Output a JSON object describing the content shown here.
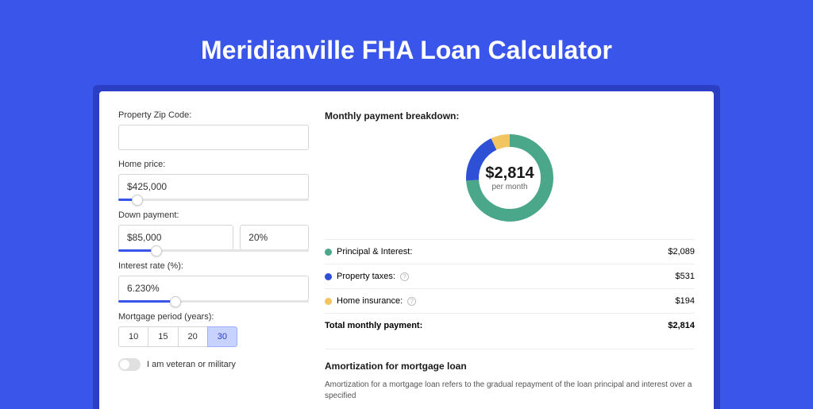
{
  "page": {
    "background_color": "#3955ea",
    "shadow_color": "#2a3fc4",
    "title": "Meridianville FHA Loan Calculator"
  },
  "form": {
    "zip": {
      "label": "Property Zip Code:",
      "value": ""
    },
    "home_price": {
      "label": "Home price:",
      "value": "$425,000",
      "slider_pct": 10
    },
    "down_payment": {
      "label": "Down payment:",
      "amount": "$85,000",
      "percent": "20%",
      "slider_pct": 20
    },
    "interest_rate": {
      "label": "Interest rate (%):",
      "value": "6.230%",
      "slider_pct": 30
    },
    "period": {
      "label": "Mortgage period (years):",
      "options": [
        "10",
        "15",
        "20",
        "30"
      ],
      "selected": "30"
    },
    "veteran": {
      "label": "I am veteran or military",
      "checked": false
    }
  },
  "breakdown": {
    "title": "Monthly payment breakdown:",
    "donut": {
      "amount": "$2,814",
      "sub": "per month",
      "segments": [
        {
          "label": "Principal & Interest",
          "value": 2089,
          "color": "#4aa789",
          "pct": 74
        },
        {
          "label": "Property taxes",
          "value": 531,
          "color": "#2d50d6",
          "pct": 19
        },
        {
          "label": "Home insurance",
          "value": 194,
          "color": "#f2c561",
          "pct": 7
        }
      ]
    },
    "rows": [
      {
        "dot": "#4aa789",
        "label": "Principal & Interest:",
        "info": false,
        "value": "$2,089"
      },
      {
        "dot": "#2d50d6",
        "label": "Property taxes:",
        "info": true,
        "value": "$531"
      },
      {
        "dot": "#f2c561",
        "label": "Home insurance:",
        "info": true,
        "value": "$194"
      }
    ],
    "total": {
      "label": "Total monthly payment:",
      "value": "$2,814"
    }
  },
  "amortization": {
    "title": "Amortization for mortgage loan",
    "text": "Amortization for a mortgage loan refers to the gradual repayment of the loan principal and interest over a specified"
  }
}
